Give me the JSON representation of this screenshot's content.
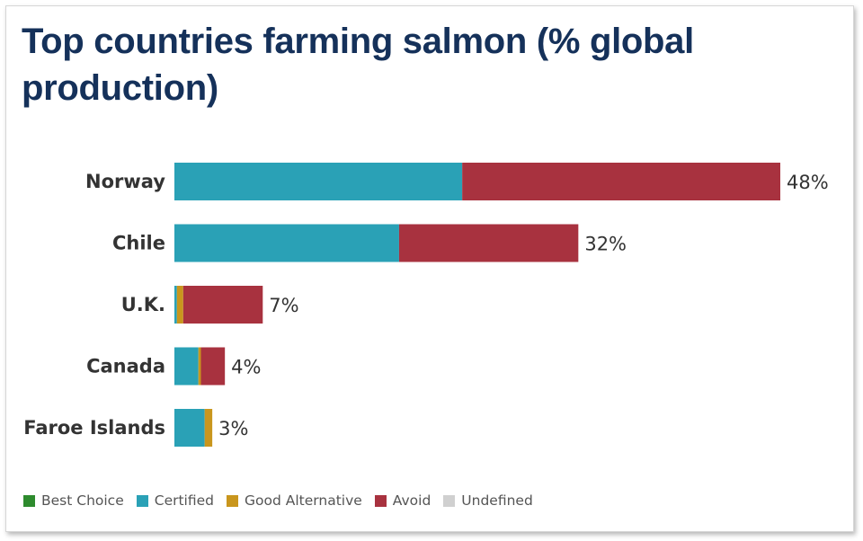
{
  "chart_data": {
    "type": "bar",
    "orientation": "horizontal",
    "stacked": true,
    "title": "Top countries farming salmon (% global production)",
    "categories": [
      "Norway",
      "Chile",
      "U.K.",
      "Canada",
      "Faroe Islands"
    ],
    "totals": [
      48,
      32,
      7,
      4,
      3
    ],
    "total_labels": [
      "48%",
      "32%",
      "7%",
      "4%",
      "3%"
    ],
    "series": [
      {
        "name": "Best Choice",
        "color": "#2e8b2e",
        "values": [
          0,
          0,
          0,
          0,
          0
        ]
      },
      {
        "name": "Certified",
        "color": "#2aa1b6",
        "values": [
          22.8,
          17.8,
          0.2,
          1.9,
          2.4
        ]
      },
      {
        "name": "Good Alternative",
        "color": "#c9961d",
        "values": [
          0,
          0,
          0.5,
          0.2,
          0.6
        ]
      },
      {
        "name": "Avoid",
        "color": "#a8323f",
        "values": [
          25.2,
          14.2,
          6.3,
          1.9,
          0
        ]
      },
      {
        "name": "Undefined",
        "color": "#d0d0d0",
        "values": [
          0,
          0,
          0,
          0,
          0
        ]
      }
    ],
    "xlim": [
      0,
      48
    ],
    "grid": false,
    "legend_position": "bottom-left"
  }
}
